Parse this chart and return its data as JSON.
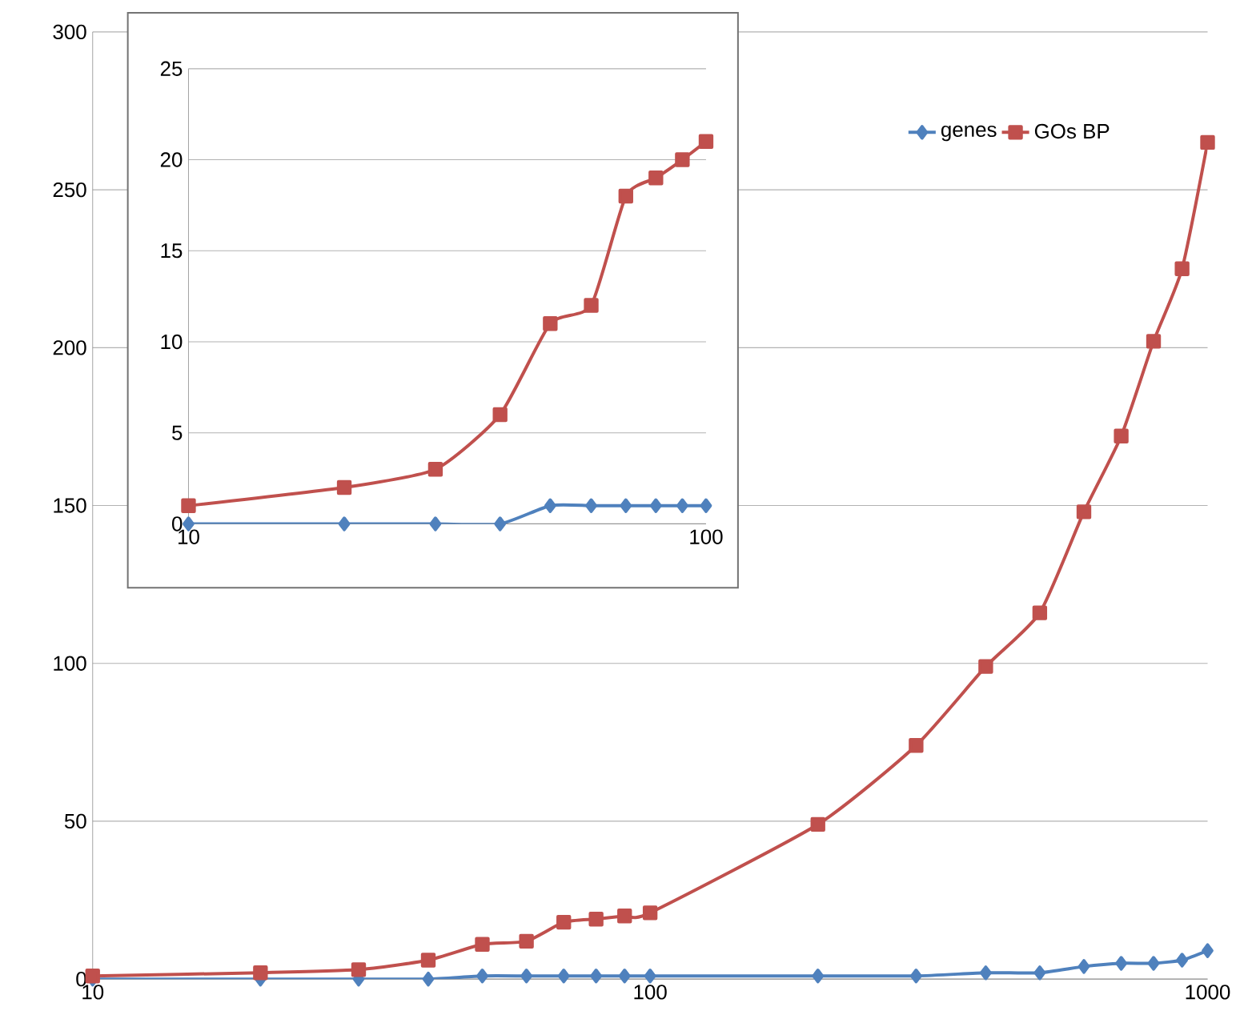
{
  "chart_data": [
    {
      "type": "line",
      "x": [
        10,
        20,
        30,
        40,
        50,
        60,
        70,
        80,
        90,
        100,
        200,
        300,
        400,
        500,
        600,
        700,
        800,
        900,
        1000
      ],
      "log": "x",
      "xlim": [
        10,
        1000
      ],
      "xticks": [
        10,
        100,
        1000
      ],
      "ylim": [
        0,
        300
      ],
      "yticks": [
        0,
        50,
        100,
        150,
        200,
        250,
        300
      ],
      "grid": "y",
      "legend": "top right",
      "series": [
        {
          "name": "genes",
          "color": "#4f81bd",
          "marker": "diamond",
          "values": [
            0,
            0,
            0,
            0,
            1,
            1,
            1,
            1,
            1,
            1,
            1,
            1,
            2,
            2,
            4,
            5,
            5,
            6,
            9
          ]
        },
        {
          "name": "GOs BP",
          "color": "#c0504d",
          "marker": "square",
          "values": [
            1,
            2,
            3,
            6,
            11,
            12,
            18,
            19,
            20,
            21,
            49,
            74,
            99,
            116,
            148,
            172,
            202,
            225,
            265
          ]
        }
      ]
    },
    {
      "type": "line",
      "x": [
        10,
        20,
        30,
        40,
        50,
        60,
        70,
        80,
        90,
        100
      ],
      "log": "x",
      "xlim": [
        10,
        100
      ],
      "xticks": [
        10,
        100
      ],
      "ylim": [
        0,
        25
      ],
      "yticks": [
        0,
        5,
        10,
        15,
        20,
        25
      ],
      "grid": "y",
      "series": [
        {
          "color": "#4f81bd",
          "marker": "diamond",
          "values": [
            0,
            0,
            0,
            0,
            1,
            1,
            1,
            1,
            1,
            1
          ]
        },
        {
          "color": "#c0504d",
          "marker": "square",
          "values": [
            1,
            2,
            3,
            6,
            11,
            12,
            18,
            19,
            20,
            21
          ]
        }
      ]
    }
  ]
}
